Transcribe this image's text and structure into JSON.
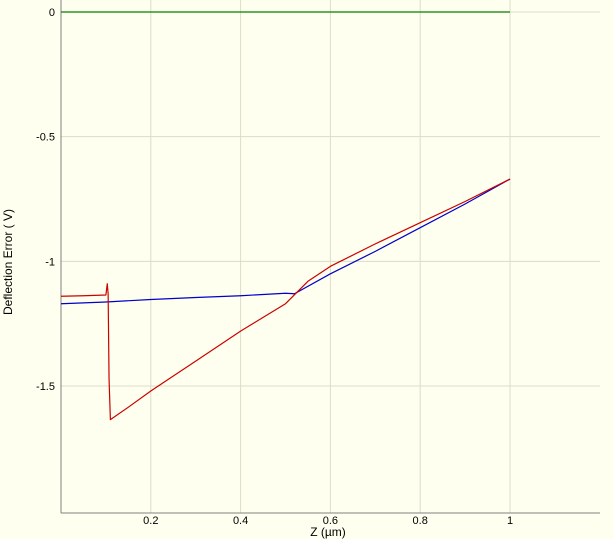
{
  "chart_data": {
    "type": "line",
    "title": "",
    "xlabel": "Z (µm)",
    "ylabel": "Deflection Error ( V)",
    "xlim": [
      0,
      1.2
    ],
    "ylim": [
      -2.0,
      0.0
    ],
    "x_ticks": [
      0.2,
      0.4,
      0.6,
      0.8,
      1
    ],
    "x_tick_labels": [
      "0.2",
      "0.4",
      "0.6",
      "0.8",
      "1"
    ],
    "y_ticks": [
      0,
      -0.5,
      -1,
      -1.5
    ],
    "y_tick_labels": [
      "0",
      "-0.5",
      "-1",
      "-1.5"
    ],
    "grid": true,
    "legend": "none",
    "colors": {
      "background": "#ffffef",
      "grid": "#dcdcc8",
      "axis": "#808080"
    },
    "series": [
      {
        "color": "#008000",
        "points": [
          [
            0.0,
            0.0
          ],
          [
            1.0,
            0.0
          ]
        ]
      },
      {
        "color": "#0000cc",
        "points": [
          [
            0.0,
            -1.17
          ],
          [
            0.1,
            -1.163
          ],
          [
            0.2,
            -1.153
          ],
          [
            0.3,
            -1.145
          ],
          [
            0.4,
            -1.138
          ],
          [
            0.45,
            -1.133
          ],
          [
            0.5,
            -1.128
          ],
          [
            0.52,
            -1.13
          ],
          [
            0.6,
            -1.05
          ],
          [
            0.7,
            -0.96
          ],
          [
            0.8,
            -0.865
          ],
          [
            0.9,
            -0.77
          ],
          [
            1.0,
            -0.67
          ]
        ]
      },
      {
        "color": "#cc0000",
        "points": [
          [
            0.0,
            -1.14
          ],
          [
            0.05,
            -1.138
          ],
          [
            0.1,
            -1.135
          ],
          [
            0.103,
            -1.09
          ],
          [
            0.105,
            -1.13
          ],
          [
            0.107,
            -1.47
          ],
          [
            0.11,
            -1.635
          ],
          [
            0.15,
            -1.585
          ],
          [
            0.2,
            -1.52
          ],
          [
            0.3,
            -1.4
          ],
          [
            0.4,
            -1.28
          ],
          [
            0.5,
            -1.17
          ],
          [
            0.55,
            -1.08
          ],
          [
            0.6,
            -1.02
          ],
          [
            0.7,
            -0.93
          ],
          [
            0.8,
            -0.845
          ],
          [
            0.9,
            -0.76
          ],
          [
            1.0,
            -0.67
          ]
        ]
      }
    ]
  }
}
